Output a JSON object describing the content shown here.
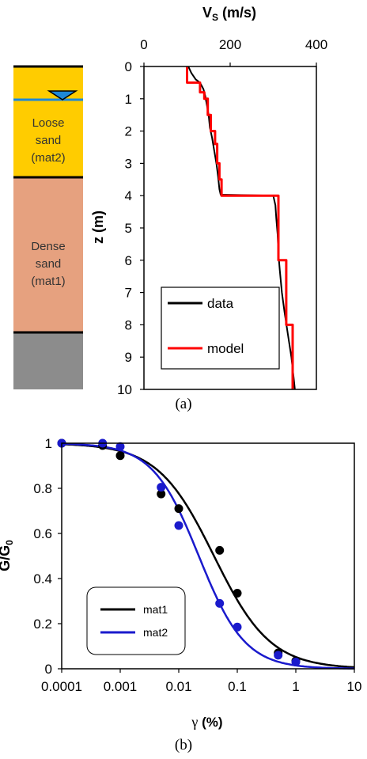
{
  "panel_a": {
    "caption": "(a)",
    "layers": [
      {
        "line1": "Loose",
        "line2": "sand",
        "line3": "(mat2)",
        "color": "#ffcc00"
      },
      {
        "line1": "Dense",
        "line2": "sand",
        "line3": "(mat1)",
        "color": "#e6a17f"
      },
      {
        "color": "#8c8c8c"
      }
    ],
    "water_table_color": "#1e88d8"
  },
  "panel_b": {
    "caption": "(b)"
  },
  "chart_data": [
    {
      "type": "line",
      "title_main": "V",
      "title_sub": "S",
      "title_unit": " (m/s)",
      "ylabel": "z (m)",
      "xlim": [
        0,
        400
      ],
      "ylim": [
        0,
        10
      ],
      "x_ticks": [
        0,
        200,
        400
      ],
      "y_ticks": [
        0,
        1,
        2,
        3,
        4,
        5,
        6,
        7,
        8,
        9,
        10
      ],
      "y_inverted": true,
      "legend_position": "bottom-left",
      "series": [
        {
          "name": "data",
          "color": "#000000",
          "points": [
            [
              103,
              0
            ],
            [
              110,
              0.2
            ],
            [
              120,
              0.4
            ],
            [
              130,
              0.5
            ],
            [
              138,
              0.7
            ],
            [
              142,
              0.9
            ],
            [
              146,
              1.2
            ],
            [
              150,
              1.5
            ],
            [
              153,
              1.9
            ],
            [
              158,
              2.2
            ],
            [
              163,
              2.6
            ],
            [
              168,
              3.0
            ],
            [
              172,
              3.4
            ],
            [
              175,
              3.8
            ],
            [
              178,
              3.97
            ],
            [
              300,
              4.0
            ],
            [
              305,
              4.3
            ],
            [
              307,
              4.7
            ],
            [
              310,
              5.2
            ],
            [
              312,
              5.8
            ],
            [
              315,
              6.3
            ],
            [
              320,
              7.0
            ],
            [
              326,
              7.6
            ],
            [
              334,
              8.3
            ],
            [
              342,
              9.0
            ],
            [
              347,
              9.6
            ],
            [
              350,
              10.0
            ]
          ]
        },
        {
          "name": "model",
          "color": "#ff0000",
          "points": [
            [
              100,
              0
            ],
            [
              100,
              0.5
            ],
            [
              130,
              0.5
            ],
            [
              130,
              0.8
            ],
            [
              140,
              0.8
            ],
            [
              140,
              1.0
            ],
            [
              148,
              1.0
            ],
            [
              148,
              1.5
            ],
            [
              155,
              1.5
            ],
            [
              155,
              2.0
            ],
            [
              165,
              2.0
            ],
            [
              165,
              2.4
            ],
            [
              170,
              2.4
            ],
            [
              170,
              3.0
            ],
            [
              175,
              3.0
            ],
            [
              175,
              3.5
            ],
            [
              180,
              3.5
            ],
            [
              180,
              4.0
            ],
            [
              312,
              4.0
            ],
            [
              312,
              6.0
            ],
            [
              330,
              6.0
            ],
            [
              330,
              8.0
            ],
            [
              345,
              8.0
            ],
            [
              345,
              10.0
            ]
          ]
        }
      ]
    },
    {
      "type": "scatter",
      "ylabel": "G/G",
      "ylabel_sub": "0",
      "xlabel_sym": "γ",
      "xlabel_unit": " (%)",
      "x_scale": "log",
      "xlim": [
        0.0001,
        10
      ],
      "ylim": [
        0,
        1
      ],
      "x_ticks": [
        0.0001,
        0.001,
        0.01,
        0.1,
        1,
        10
      ],
      "x_tick_labels": [
        "0.0001",
        "0.001",
        "0.01",
        "0.1",
        "1",
        "10"
      ],
      "y_ticks": [
        0,
        0.2,
        0.4,
        0.6,
        0.8,
        1
      ],
      "y_tick_labels": [
        "0",
        "0.2",
        "0.4",
        "0.6",
        "0.8",
        "1"
      ],
      "legend_position": "lower-left",
      "series": [
        {
          "name": "mat1",
          "color": "#000000",
          "curve_ref_strain": 0.04,
          "curve_exponent": 0.9,
          "points": [
            [
              0.0001,
              1.0
            ],
            [
              0.0005,
              0.99
            ],
            [
              0.001,
              0.945
            ],
            [
              0.005,
              0.775
            ],
            [
              0.01,
              0.71
            ],
            [
              0.05,
              0.525
            ],
            [
              0.1,
              0.335
            ],
            [
              0.5,
              0.07
            ],
            [
              1,
              0.035
            ]
          ]
        },
        {
          "name": "mat2",
          "color": "#1a1acc",
          "curve_ref_strain": 0.022,
          "curve_exponent": 1.1,
          "points": [
            [
              0.0001,
              1.0
            ],
            [
              0.0005,
              1.0
            ],
            [
              0.001,
              0.985
            ],
            [
              0.005,
              0.805
            ],
            [
              0.01,
              0.635
            ],
            [
              0.05,
              0.29
            ],
            [
              0.1,
              0.185
            ],
            [
              0.5,
              0.06
            ],
            [
              1,
              0.03
            ]
          ]
        }
      ]
    }
  ]
}
